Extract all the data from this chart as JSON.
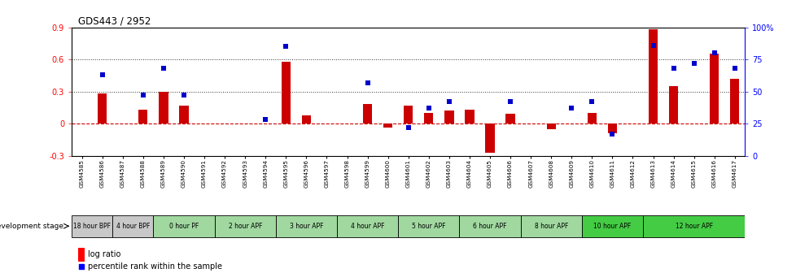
{
  "title": "GDS443 / 2952",
  "samples": [
    "GSM4585",
    "GSM4586",
    "GSM4587",
    "GSM4588",
    "GSM4589",
    "GSM4590",
    "GSM4591",
    "GSM4592",
    "GSM4593",
    "GSM4594",
    "GSM4595",
    "GSM4596",
    "GSM4597",
    "GSM4598",
    "GSM4599",
    "GSM4600",
    "GSM4601",
    "GSM4602",
    "GSM4603",
    "GSM4604",
    "GSM4605",
    "GSM4606",
    "GSM4607",
    "GSM4608",
    "GSM4609",
    "GSM4610",
    "GSM4611",
    "GSM4612",
    "GSM4613",
    "GSM4614",
    "GSM4615",
    "GSM4616",
    "GSM4617"
  ],
  "log_ratio": [
    0.0,
    0.28,
    0.0,
    0.13,
    0.3,
    0.17,
    0.0,
    0.0,
    0.0,
    0.0,
    0.58,
    0.08,
    0.0,
    0.0,
    0.18,
    -0.04,
    0.17,
    0.1,
    0.12,
    0.13,
    -0.27,
    0.09,
    0.0,
    -0.05,
    0.0,
    0.1,
    -0.09,
    0.0,
    0.88,
    0.35,
    0.0,
    0.65,
    0.42
  ],
  "percentile": [
    0.0,
    63.0,
    0.0,
    47.0,
    68.0,
    47.0,
    0.0,
    0.0,
    0.0,
    28.0,
    85.0,
    0.0,
    0.0,
    0.0,
    57.0,
    0.0,
    22.0,
    37.0,
    42.0,
    0.0,
    0.0,
    42.0,
    0.0,
    0.0,
    37.0,
    42.0,
    17.0,
    0.0,
    86.0,
    68.0,
    72.0,
    80.0,
    68.0
  ],
  "stages": [
    {
      "label": "18 hour BPF",
      "count": 2,
      "color": "#c8c8c8"
    },
    {
      "label": "4 hour BPF",
      "count": 2,
      "color": "#c8c8c8"
    },
    {
      "label": "0 hour PF",
      "count": 3,
      "color": "#a0d8a0"
    },
    {
      "label": "2 hour APF",
      "count": 3,
      "color": "#a0d8a0"
    },
    {
      "label": "3 hour APF",
      "count": 3,
      "color": "#a0d8a0"
    },
    {
      "label": "4 hour APF",
      "count": 3,
      "color": "#a0d8a0"
    },
    {
      "label": "5 hour APF",
      "count": 3,
      "color": "#a0d8a0"
    },
    {
      "label": "6 hour APF",
      "count": 3,
      "color": "#a0d8a0"
    },
    {
      "label": "8 hour APF",
      "count": 3,
      "color": "#a0d8a0"
    },
    {
      "label": "10 hour APF",
      "count": 3,
      "color": "#44cc44"
    },
    {
      "label": "12 hour APF",
      "count": 5,
      "color": "#44cc44"
    }
  ],
  "ylim_left": [
    -0.3,
    0.9
  ],
  "ylim_right": [
    0,
    100
  ],
  "bar_color": "#cc0000",
  "dot_color": "#0000cc",
  "zero_line_color": "#cc0000",
  "dotted_line_color": "#333333",
  "grid_yticks_left": [
    -0.3,
    0.0,
    0.3,
    0.6,
    0.9
  ],
  "grid_yticks_right": [
    0,
    25,
    50,
    75,
    100
  ]
}
